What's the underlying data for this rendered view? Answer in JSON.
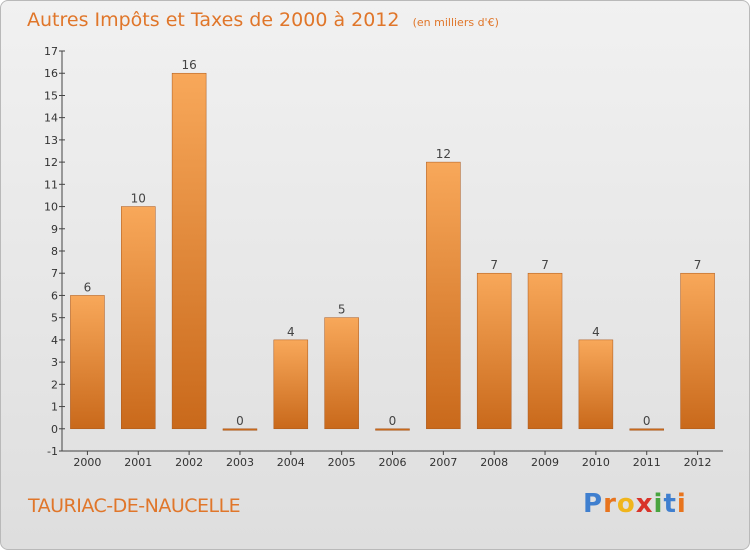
{
  "header": {
    "title": "Autres Impôts et Taxes de 2000 à 2012",
    "unit": "(en milliers d'€)"
  },
  "footer": {
    "commune": "TAURIAC-DE-NAUCELLE",
    "logo_letters": [
      {
        "char": "P",
        "color": "#3f7fcf"
      },
      {
        "char": "r",
        "color": "#e8741d"
      },
      {
        "char": "o",
        "color": "#f0b51c"
      },
      {
        "char": "x",
        "color": "#d9342a"
      },
      {
        "char": "i",
        "color": "#48a43f"
      },
      {
        "char": "t",
        "color": "#3f7fcf"
      },
      {
        "char": "i",
        "color": "#e8741d"
      }
    ]
  },
  "colors": {
    "title": "#e0762a",
    "bar_top": "#f8a85a",
    "bar_bottom": "#c9691b",
    "bar_edge": "#a8561a"
  },
  "chart_data": {
    "type": "bar",
    "title": "Autres Impôts et Taxes de 2000 à 2012",
    "ylabel": "",
    "xlabel": "",
    "categories": [
      "2000",
      "2001",
      "2002",
      "2003",
      "2004",
      "2005",
      "2006",
      "2007",
      "2008",
      "2009",
      "2010",
      "2011",
      "2012"
    ],
    "values": [
      6,
      10,
      16,
      0,
      4,
      5,
      0,
      12,
      7,
      7,
      4,
      0,
      7
    ],
    "ylim": [
      -1,
      17
    ],
    "yticks": [
      -1,
      0,
      1,
      2,
      3,
      4,
      5,
      6,
      7,
      8,
      9,
      10,
      11,
      12,
      13,
      14,
      15,
      16,
      17
    ],
    "grid": false,
    "legend": "none"
  }
}
